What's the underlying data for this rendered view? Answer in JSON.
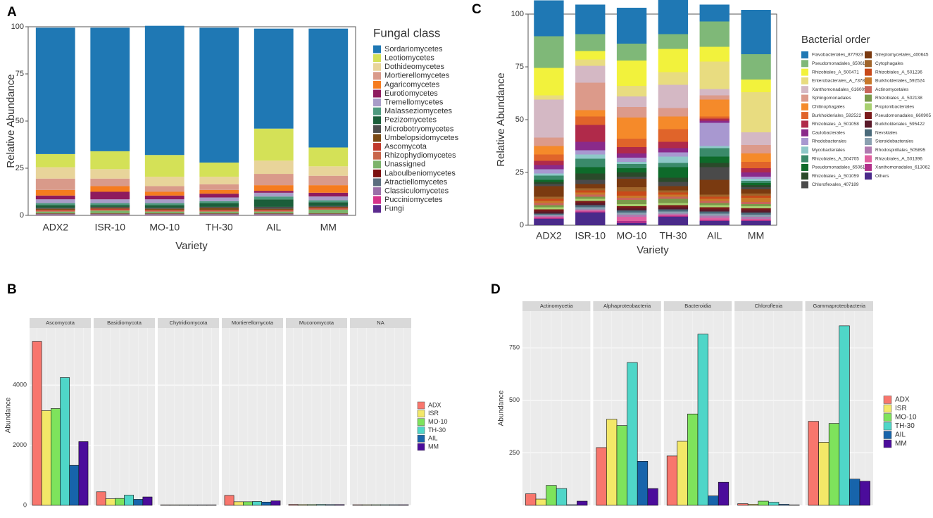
{
  "chart_data": [
    {
      "panel": "A",
      "type": "stacked_bar",
      "xlabel": "Variety",
      "ylabel": "Relative Abundance",
      "legend_title": "Fungal class",
      "grid": false,
      "categories": [
        "ADX2",
        "ISR-10",
        "MO-10",
        "TH-30",
        "AIL",
        "MM"
      ],
      "ylim": [
        0,
        100
      ],
      "yticks": [
        0,
        25,
        50,
        75,
        100
      ],
      "series": [
        {
          "name": "Sordariomycetes",
          "color": "#1f78b4",
          "values": [
            67,
            65.5,
            68.5,
            71.5,
            53,
            63
          ]
        },
        {
          "name": "Leotiomycetes",
          "color": "#d4e157",
          "values": [
            7,
            9.5,
            11.5,
            7.5,
            17,
            10
          ]
        },
        {
          "name": "Dothideomycetes",
          "color": "#e8d49a",
          "values": [
            6,
            5,
            5,
            4,
            7,
            5
          ]
        },
        {
          "name": "Mortierellomycetes",
          "color": "#d99a8a",
          "values": [
            6,
            4,
            3,
            3,
            6,
            5
          ]
        },
        {
          "name": "Agaricomycetes",
          "color": "#f57c1f",
          "values": [
            3,
            3,
            2,
            2,
            3,
            4
          ]
        },
        {
          "name": "Eurotiomycetes",
          "color": "#8e1b5e",
          "values": [
            2,
            4,
            2,
            2,
            1,
            2
          ]
        },
        {
          "name": "Tremellomycetes",
          "color": "#a89cc8",
          "values": [
            2,
            2,
            2,
            2,
            2,
            2
          ]
        },
        {
          "name": "Malasseziomycetes",
          "color": "#4e9a7e",
          "values": [
            1,
            1,
            1,
            1,
            1.5,
            1
          ]
        },
        {
          "name": "Pezizomycetes",
          "color": "#1b5e3a",
          "values": [
            1.5,
            1,
            1.5,
            2,
            4,
            2
          ]
        },
        {
          "name": "Microbotryomycetes",
          "color": "#4d4d4d",
          "values": [
            0.5,
            0.5,
            0.5,
            0.5,
            1,
            0.5
          ]
        },
        {
          "name": "Umbelopsidomycetes",
          "color": "#7a4a14",
          "values": [
            0.5,
            0.5,
            0.5,
            1,
            0.5,
            0.5
          ]
        },
        {
          "name": "Ascomycota",
          "color": "#c0392b",
          "values": [
            0.5,
            0.5,
            0.5,
            0.5,
            0.5,
            0.5
          ]
        },
        {
          "name": "Rhizophydiomycetes",
          "color": "#c8654a",
          "values": [
            0.5,
            0.5,
            0.5,
            0.5,
            0.5,
            0.5
          ]
        },
        {
          "name": "Unassigned",
          "color": "#7cb36a",
          "values": [
            1,
            1.5,
            1,
            1,
            1,
            2
          ]
        },
        {
          "name": "Laboulbeniomycetes",
          "color": "#7b1010",
          "values": [
            0.3,
            0.3,
            0.3,
            0.3,
            0.3,
            0.3
          ]
        },
        {
          "name": "Atractiellomycetes",
          "color": "#5b6e7e",
          "values": [
            0.2,
            0.2,
            0.2,
            0.2,
            0.2,
            0.2
          ]
        },
        {
          "name": "Classiculomycetes",
          "color": "#9b6fa8",
          "values": [
            0.2,
            0.2,
            0.2,
            0.2,
            0.2,
            0.2
          ]
        },
        {
          "name": "Pucciniomycetes",
          "color": "#d6338a",
          "values": [
            0.2,
            0.2,
            0.2,
            0.2,
            0.2,
            0.2
          ]
        },
        {
          "name": "Fungi",
          "color": "#5b2a8e",
          "values": [
            0.1,
            0.1,
            0.1,
            0.1,
            0.1,
            0.1
          ]
        }
      ]
    },
    {
      "panel": "B",
      "type": "faceted_bar",
      "ylabel": "Abundance",
      "grid": true,
      "facets": [
        "Ascomycota",
        "Basidiomycota",
        "Chytridiomycota",
        "Mortierellomycota",
        "Mucoromycota",
        "NA"
      ],
      "ylim": [
        0,
        5900
      ],
      "yticks": [
        0,
        2000,
        4000
      ],
      "series": [
        {
          "name": "ADX",
          "color": "#f8766d",
          "values": [
            5450,
            450,
            15,
            330,
            30,
            20
          ]
        },
        {
          "name": "ISR",
          "color": "#f3e868",
          "values": [
            3150,
            220,
            15,
            120,
            25,
            20
          ]
        },
        {
          "name": "MO-10",
          "color": "#7ee35c",
          "values": [
            3220,
            230,
            15,
            120,
            25,
            20
          ]
        },
        {
          "name": "TH-30",
          "color": "#4fd6c8",
          "values": [
            4250,
            340,
            15,
            130,
            30,
            20
          ]
        },
        {
          "name": "AIL",
          "color": "#1764ab",
          "values": [
            1330,
            200,
            15,
            110,
            25,
            20
          ]
        },
        {
          "name": "MM",
          "color": "#4b0c9b",
          "values": [
            2120,
            280,
            15,
            150,
            25,
            20
          ]
        }
      ]
    },
    {
      "panel": "C",
      "type": "stacked_bar",
      "xlabel": "Variety",
      "ylabel": "Relative Abundance",
      "legend_title": "Bacterial order",
      "grid": false,
      "categories": [
        "ADX2",
        "ISR-10",
        "MO-10",
        "TH-30",
        "AIL",
        "MM"
      ],
      "ylim": [
        0,
        100
      ],
      "yticks": [
        0,
        25,
        50,
        75,
        100
      ],
      "series": [
        {
          "name": "Flavobacteriales_877923",
          "color": "#1f78b4",
          "values": [
            17,
            14,
            17,
            18,
            8,
            21
          ]
        },
        {
          "name": "Pseudomonadales_650611",
          "color": "#7fb878",
          "values": [
            15,
            8,
            8,
            7,
            12,
            12
          ]
        },
        {
          "name": "Rhizobiales_A_500471",
          "color": "#f2f23c",
          "values": [
            13,
            4,
            12,
            11,
            7,
            6
          ]
        },
        {
          "name": "Enterobacterales_A_737866",
          "color": "#e8dc80",
          "values": [
            2,
            3,
            5,
            6,
            13,
            19
          ]
        },
        {
          "name": "Xanthomonadales_616009",
          "color": "#d4b8c4",
          "values": [
            18,
            8,
            5,
            11,
            3,
            6
          ]
        },
        {
          "name": "Sphingomonadales",
          "color": "#dc9a8a",
          "values": [
            4,
            13,
            5,
            4,
            2,
            4
          ]
        },
        {
          "name": "Chitinophagales",
          "color": "#f58a2a",
          "values": [
            4,
            3,
            10,
            6,
            8,
            4
          ]
        },
        {
          "name": "Burkholderiales_592522",
          "color": "#e0642a",
          "values": [
            3,
            4,
            4,
            6,
            1,
            3
          ]
        },
        {
          "name": "Rhizobiales_A_501058",
          "color": "#b02a4a",
          "values": [
            2,
            8,
            3,
            3,
            1,
            2
          ]
        },
        {
          "name": "Caulobacterales",
          "color": "#8a2a8a",
          "values": [
            2,
            4,
            2,
            2,
            1,
            2
          ]
        },
        {
          "name": "Rhodobacterales",
          "color": "#a898d0",
          "values": [
            2,
            2,
            2,
            2,
            11,
            1
          ]
        },
        {
          "name": "Mycobacteriales",
          "color": "#8ec8c8",
          "values": [
            1,
            2,
            1,
            3,
            1,
            1
          ]
        },
        {
          "name": "Rhizobiales_A_504705",
          "color": "#3a8a6a",
          "values": [
            2,
            4,
            2,
            2,
            4,
            1
          ]
        },
        {
          "name": "Pseudomonadales_650612",
          "color": "#0e6a2a",
          "values": [
            1,
            3,
            2,
            5,
            3,
            1
          ]
        },
        {
          "name": "Rhizobiales_A_501059",
          "color": "#2a4a2a",
          "values": [
            1,
            3,
            2,
            2,
            2,
            1
          ]
        },
        {
          "name": "Chloroflexales_407189",
          "color": "#4a4a4a",
          "values": [
            1,
            2,
            1,
            2,
            6,
            1
          ]
        },
        {
          "name": "Streptomycetales_400645",
          "color": "#7a3a10",
          "values": [
            5,
            2,
            4,
            2,
            7,
            2
          ]
        },
        {
          "name": "Cytophagales",
          "color": "#a0642a",
          "values": [
            1,
            1,
            2,
            1,
            1,
            1
          ]
        },
        {
          "name": "Rhizobiales_A_501236",
          "color": "#c84a1a",
          "values": [
            1,
            1,
            2,
            1,
            1,
            1
          ]
        },
        {
          "name": "Burkholderiales_592524",
          "color": "#c8782a",
          "values": [
            1,
            1,
            1,
            1,
            1,
            2
          ]
        },
        {
          "name": "Actinomycetales",
          "color": "#c8645a",
          "values": [
            1,
            1,
            1,
            1,
            1,
            1
          ]
        },
        {
          "name": "Rhizobiales_A_502138",
          "color": "#7a9a4a",
          "values": [
            1,
            1,
            2,
            2,
            1,
            1
          ]
        },
        {
          "name": "Propionibacteriales",
          "color": "#a8d070",
          "values": [
            1,
            1,
            1,
            1,
            1,
            1
          ]
        },
        {
          "name": "Pseudomonadales_660905",
          "color": "#7a1a1a",
          "values": [
            1,
            1,
            1,
            1,
            1,
            1
          ]
        },
        {
          "name": "Burkholderiales_595422",
          "color": "#5a1a2a",
          "values": [
            1,
            1,
            1,
            1,
            1,
            1
          ]
        },
        {
          "name": "Nevskiales",
          "color": "#4a6a7a",
          "values": [
            0.5,
            1,
            1,
            1,
            1,
            1
          ]
        },
        {
          "name": "Steroidobacterales",
          "color": "#8aa0b0",
          "values": [
            0.5,
            1,
            1,
            1,
            1,
            1
          ]
        },
        {
          "name": "Rhodospirillales_505895",
          "color": "#b07ab0",
          "values": [
            0.5,
            0.5,
            1,
            0.5,
            1,
            1
          ]
        },
        {
          "name": "Rhizobiales_A_501396",
          "color": "#e060a0",
          "values": [
            0.5,
            0.5,
            2,
            0.5,
            1,
            0.5
          ]
        },
        {
          "name": "Xanthomonadales_613062",
          "color": "#b0308a",
          "values": [
            0.5,
            0.5,
            1,
            0.5,
            0.5,
            0.5
          ]
        },
        {
          "name": "Others",
          "color": "#4a2a8a",
          "values": [
            3,
            6,
            1,
            4,
            2,
            2
          ]
        }
      ]
    },
    {
      "panel": "D",
      "type": "faceted_bar",
      "ylabel": "Abundance",
      "grid": true,
      "facets": [
        "Actinomycetia",
        "Alphaproteobacteria",
        "Bacteroidia",
        "Chloroflexia",
        "Gammaproteobacteria"
      ],
      "ylim": [
        0,
        925
      ],
      "yticks": [
        250,
        500,
        750
      ],
      "series": [
        {
          "name": "ADX",
          "color": "#f8766d",
          "values": [
            55,
            275,
            235,
            8,
            400
          ]
        },
        {
          "name": "ISR",
          "color": "#f3e868",
          "values": [
            30,
            410,
            305,
            5,
            300
          ]
        },
        {
          "name": "MO-10",
          "color": "#7ee35c",
          "values": [
            95,
            380,
            435,
            20,
            390
          ]
        },
        {
          "name": "TH-30",
          "color": "#4fd6c8",
          "values": [
            80,
            680,
            815,
            15,
            855
          ]
        },
        {
          "name": "AIL",
          "color": "#1764ab",
          "values": [
            3,
            210,
            45,
            5,
            125
          ]
        },
        {
          "name": "MM",
          "color": "#4b0c9b",
          "values": [
            20,
            80,
            110,
            2,
            115
          ]
        }
      ]
    }
  ]
}
